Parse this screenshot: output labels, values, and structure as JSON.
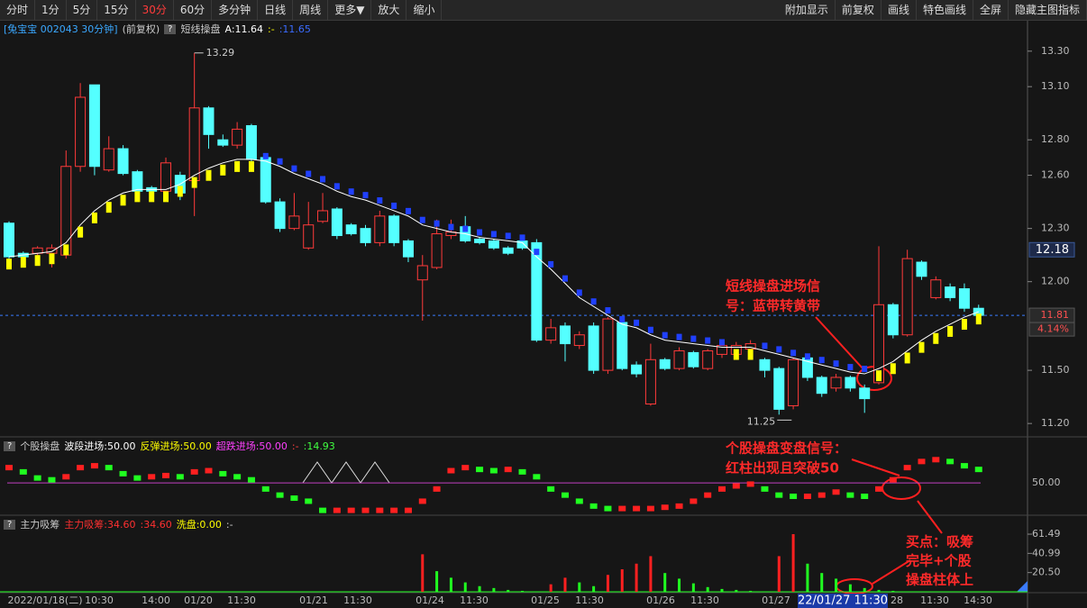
{
  "toolbar": {
    "left": [
      "分时",
      "1分",
      "5分",
      "15分",
      "30分",
      "60分",
      "多分钟",
      "日线",
      "周线",
      "更多▼",
      "放大",
      "缩小"
    ],
    "active": "30分",
    "right": [
      "附加显示",
      "前复权",
      "画线",
      "特色画线",
      "全屏",
      "隐藏主图指标"
    ]
  },
  "chart_data": [
    {
      "type": "candlestick",
      "stock": "[兔宝宝 002043 30分钟]",
      "adjust": "(前复权)",
      "indicator": "短线操盘",
      "indicator_texts": [
        "A:11.64",
        ":-",
        ":11.65"
      ],
      "open": [
        12.33,
        12.16,
        12.16,
        12.16,
        12.15,
        12.65,
        13.11,
        12.63,
        12.75,
        12.62,
        12.53,
        12.51,
        12.6,
        12.57,
        12.98,
        12.8,
        12.77,
        12.88,
        12.7,
        12.45,
        12.3,
        12.19,
        12.34,
        12.41,
        12.32,
        12.3,
        12.22,
        12.37,
        12.23,
        12.01,
        12.08,
        12.26,
        12.31,
        12.24,
        12.23,
        12.19,
        12.23,
        12.22,
        11.67,
        11.75,
        11.64,
        11.75,
        11.5,
        11.77,
        11.53,
        11.31,
        11.56,
        11.51,
        11.6,
        11.51,
        11.59,
        11.59,
        11.62,
        11.56,
        11.51,
        11.3,
        11.57,
        11.46,
        11.4,
        11.46,
        11.4,
        11.43,
        11.87,
        11.7,
        12.11,
        11.91,
        11.97,
        11.96,
        11.85
      ],
      "high": [
        12.34,
        12.17,
        12.2,
        12.21,
        12.74,
        13.12,
        13.11,
        12.82,
        12.77,
        12.63,
        12.54,
        12.7,
        12.62,
        13.29,
        12.99,
        12.83,
        12.9,
        12.89,
        12.72,
        12.47,
        12.5,
        12.45,
        12.5,
        12.42,
        12.33,
        12.32,
        12.4,
        12.38,
        12.24,
        12.15,
        12.35,
        12.35,
        12.37,
        12.25,
        12.24,
        12.2,
        12.24,
        12.24,
        11.79,
        11.77,
        11.72,
        11.77,
        11.8,
        11.79,
        11.55,
        11.65,
        11.57,
        11.63,
        11.61,
        11.62,
        11.65,
        11.66,
        11.67,
        11.57,
        11.52,
        11.57,
        11.59,
        11.47,
        11.48,
        11.47,
        11.42,
        12.2,
        11.88,
        12.18,
        12.12,
        12.03,
        11.99,
        11.99,
        11.87
      ],
      "low": [
        12.12,
        12.13,
        12.14,
        12.08,
        12.13,
        12.62,
        12.6,
        12.62,
        12.6,
        12.5,
        12.5,
        12.49,
        12.46,
        12.37,
        12.75,
        12.76,
        12.75,
        12.67,
        12.44,
        12.28,
        12.29,
        12.18,
        12.33,
        12.24,
        12.26,
        12.2,
        12.2,
        12.2,
        12.11,
        11.78,
        12.07,
        12.24,
        12.22,
        12.21,
        12.18,
        12.15,
        12.18,
        11.66,
        11.65,
        11.55,
        11.62,
        11.48,
        11.48,
        11.5,
        11.46,
        11.3,
        11.5,
        11.5,
        11.51,
        11.5,
        11.57,
        11.58,
        11.61,
        11.46,
        11.25,
        11.28,
        11.44,
        11.35,
        11.38,
        11.38,
        11.26,
        11.42,
        11.68,
        11.69,
        12.01,
        11.9,
        11.89,
        11.83,
        11.79
      ],
      "close": [
        12.14,
        12.14,
        12.19,
        12.19,
        12.65,
        13.04,
        12.65,
        12.75,
        12.61,
        12.51,
        12.51,
        12.67,
        12.5,
        12.98,
        12.83,
        12.77,
        12.86,
        12.69,
        12.45,
        12.3,
        12.37,
        12.32,
        12.4,
        12.26,
        12.27,
        12.22,
        12.37,
        12.22,
        12.14,
        12.09,
        12.27,
        12.28,
        12.23,
        12.22,
        12.19,
        12.16,
        12.19,
        11.67,
        11.74,
        11.65,
        11.7,
        11.5,
        11.79,
        11.51,
        11.48,
        11.56,
        11.51,
        11.61,
        11.52,
        11.61,
        11.64,
        11.64,
        11.65,
        11.5,
        11.28,
        11.56,
        11.46,
        11.37,
        11.46,
        11.4,
        11.34,
        11.87,
        11.7,
        12.13,
        12.03,
        12.01,
        11.91,
        11.85,
        11.81
      ],
      "line": [
        12.14,
        12.15,
        12.16,
        12.17,
        12.22,
        12.32,
        12.4,
        12.46,
        12.5,
        12.52,
        12.52,
        12.52,
        12.55,
        12.6,
        12.64,
        12.67,
        12.69,
        12.69,
        12.68,
        12.65,
        12.61,
        12.58,
        12.55,
        12.51,
        12.48,
        12.46,
        12.43,
        12.4,
        12.37,
        12.32,
        12.3,
        12.28,
        12.27,
        12.25,
        12.24,
        12.23,
        12.22,
        12.14,
        12.07,
        11.99,
        11.91,
        11.86,
        11.81,
        11.76,
        11.74,
        11.7,
        11.67,
        11.66,
        11.65,
        11.64,
        11.63,
        11.63,
        11.63,
        11.61,
        11.59,
        11.57,
        11.55,
        11.53,
        11.51,
        11.49,
        11.48,
        11.51,
        11.55,
        11.61,
        11.67,
        11.72,
        11.76,
        11.8,
        11.83
      ],
      "up_color": "#ff3a3a",
      "down_color": "#54ffff",
      "line_up_color": "#ffff00",
      "line_down_color": "#2040ff",
      "ylim": [
        11.15,
        13.36
      ],
      "yticks": [
        {
          "value": 13.3,
          "label": "13.30"
        },
        {
          "value": 13.1,
          "label": "13.10"
        },
        {
          "value": 12.8,
          "label": "12.80"
        },
        {
          "value": 12.6,
          "label": "12.60"
        },
        {
          "value": 12.3,
          "label": "12.30"
        },
        {
          "value": 12,
          "label": "12.00"
        },
        {
          "value": 11.5,
          "label": "11.50"
        },
        {
          "value": 11.2,
          "label": "11.20"
        }
      ],
      "price_tags": [
        {
          "value": 12.18,
          "label": "12.18"
        },
        {
          "value": 11.81,
          "label": "11.81"
        }
      ],
      "change_label": "4.14%",
      "x_labels": [
        "2022/01/18(二)",
        "10:30",
        "14:00",
        "01/20",
        "11:30",
        "01/21",
        "11:30",
        "01/24",
        "11:30",
        "01/25",
        "11:30",
        "01/26",
        "11:30",
        "01/27",
        "22/01/27 11:30",
        "28",
        "11:30",
        "14:30"
      ]
    },
    {
      "type": "dots",
      "title": "个股操盘",
      "legend": [
        {
          "text": "波段进场:50.00",
          "color": "#ffffff"
        },
        {
          "text": "反弹进场:50.00",
          "color": "#ffff00"
        },
        {
          "text": "超跌进场:50.00",
          "color": "#ff40ff"
        },
        {
          "text": ":-",
          "color": "#ff4040"
        },
        {
          "text": ":14.93",
          "color": "#40ff40"
        }
      ],
      "values": [
        75,
        68,
        58,
        55,
        60,
        75,
        78,
        75,
        65,
        58,
        60,
        62,
        60,
        68,
        70,
        65,
        60,
        55,
        40,
        30,
        25,
        20,
        5,
        5,
        5,
        5,
        5,
        5,
        5,
        20,
        40,
        70,
        75,
        72,
        70,
        72,
        68,
        60,
        40,
        30,
        20,
        12,
        8,
        8,
        8,
        8,
        10,
        12,
        20,
        30,
        40,
        45,
        48,
        40,
        30,
        28,
        28,
        30,
        35,
        30,
        28,
        40,
        55,
        75,
        85,
        88,
        85,
        78,
        72
      ],
      "up_color": "#ff2020",
      "down_color": "#20ff20",
      "level": {
        "value": 50,
        "label": "50.00"
      },
      "level_color": "#c040c0",
      "ylim": [
        0,
        115
      ]
    },
    {
      "type": "bar",
      "title": "主力吸筹",
      "legend": [
        {
          "text": "主力吸筹:34.60",
          "color": "#ff3030"
        },
        {
          "text": ":34.60",
          "color": "#ff3030"
        },
        {
          "text": "洗盘:0.00",
          "color": "#ffff00"
        },
        {
          "text": ":-",
          "color": "#cccccc"
        }
      ],
      "values": [
        0,
        0,
        0,
        0,
        0,
        0,
        0,
        0,
        0,
        0,
        0,
        0,
        0,
        0,
        0,
        0,
        0,
        0,
        0,
        0,
        0,
        0,
        0,
        0,
        0,
        0,
        0,
        0,
        0,
        40,
        22,
        15,
        10,
        6,
        4,
        2,
        1,
        0,
        8,
        15,
        10,
        6,
        18,
        24,
        30,
        38,
        20,
        14,
        9,
        5,
        3,
        2,
        1,
        0,
        38,
        61.49,
        30,
        20,
        14,
        8,
        4,
        2,
        1,
        0,
        0,
        0,
        0,
        0,
        0
      ],
      "up_color": "#ff2020",
      "down_color": "#20ff20",
      "ylim": [
        0,
        69.2
      ],
      "yticks": [
        {
          "value": 61.49,
          "label": "61.49"
        },
        {
          "value": 40.99,
          "label": "40.99"
        },
        {
          "value": 20.5,
          "label": "20.50"
        }
      ]
    }
  ],
  "annotations": [
    [
      "短线操盘进场信",
      "号：蓝带转黄带"
    ],
    [
      "个股操盘变盘信号：",
      "红柱出现且突破50"
    ],
    [
      "买点：吸筹",
      "完毕+个股",
      "操盘柱体上"
    ]
  ]
}
